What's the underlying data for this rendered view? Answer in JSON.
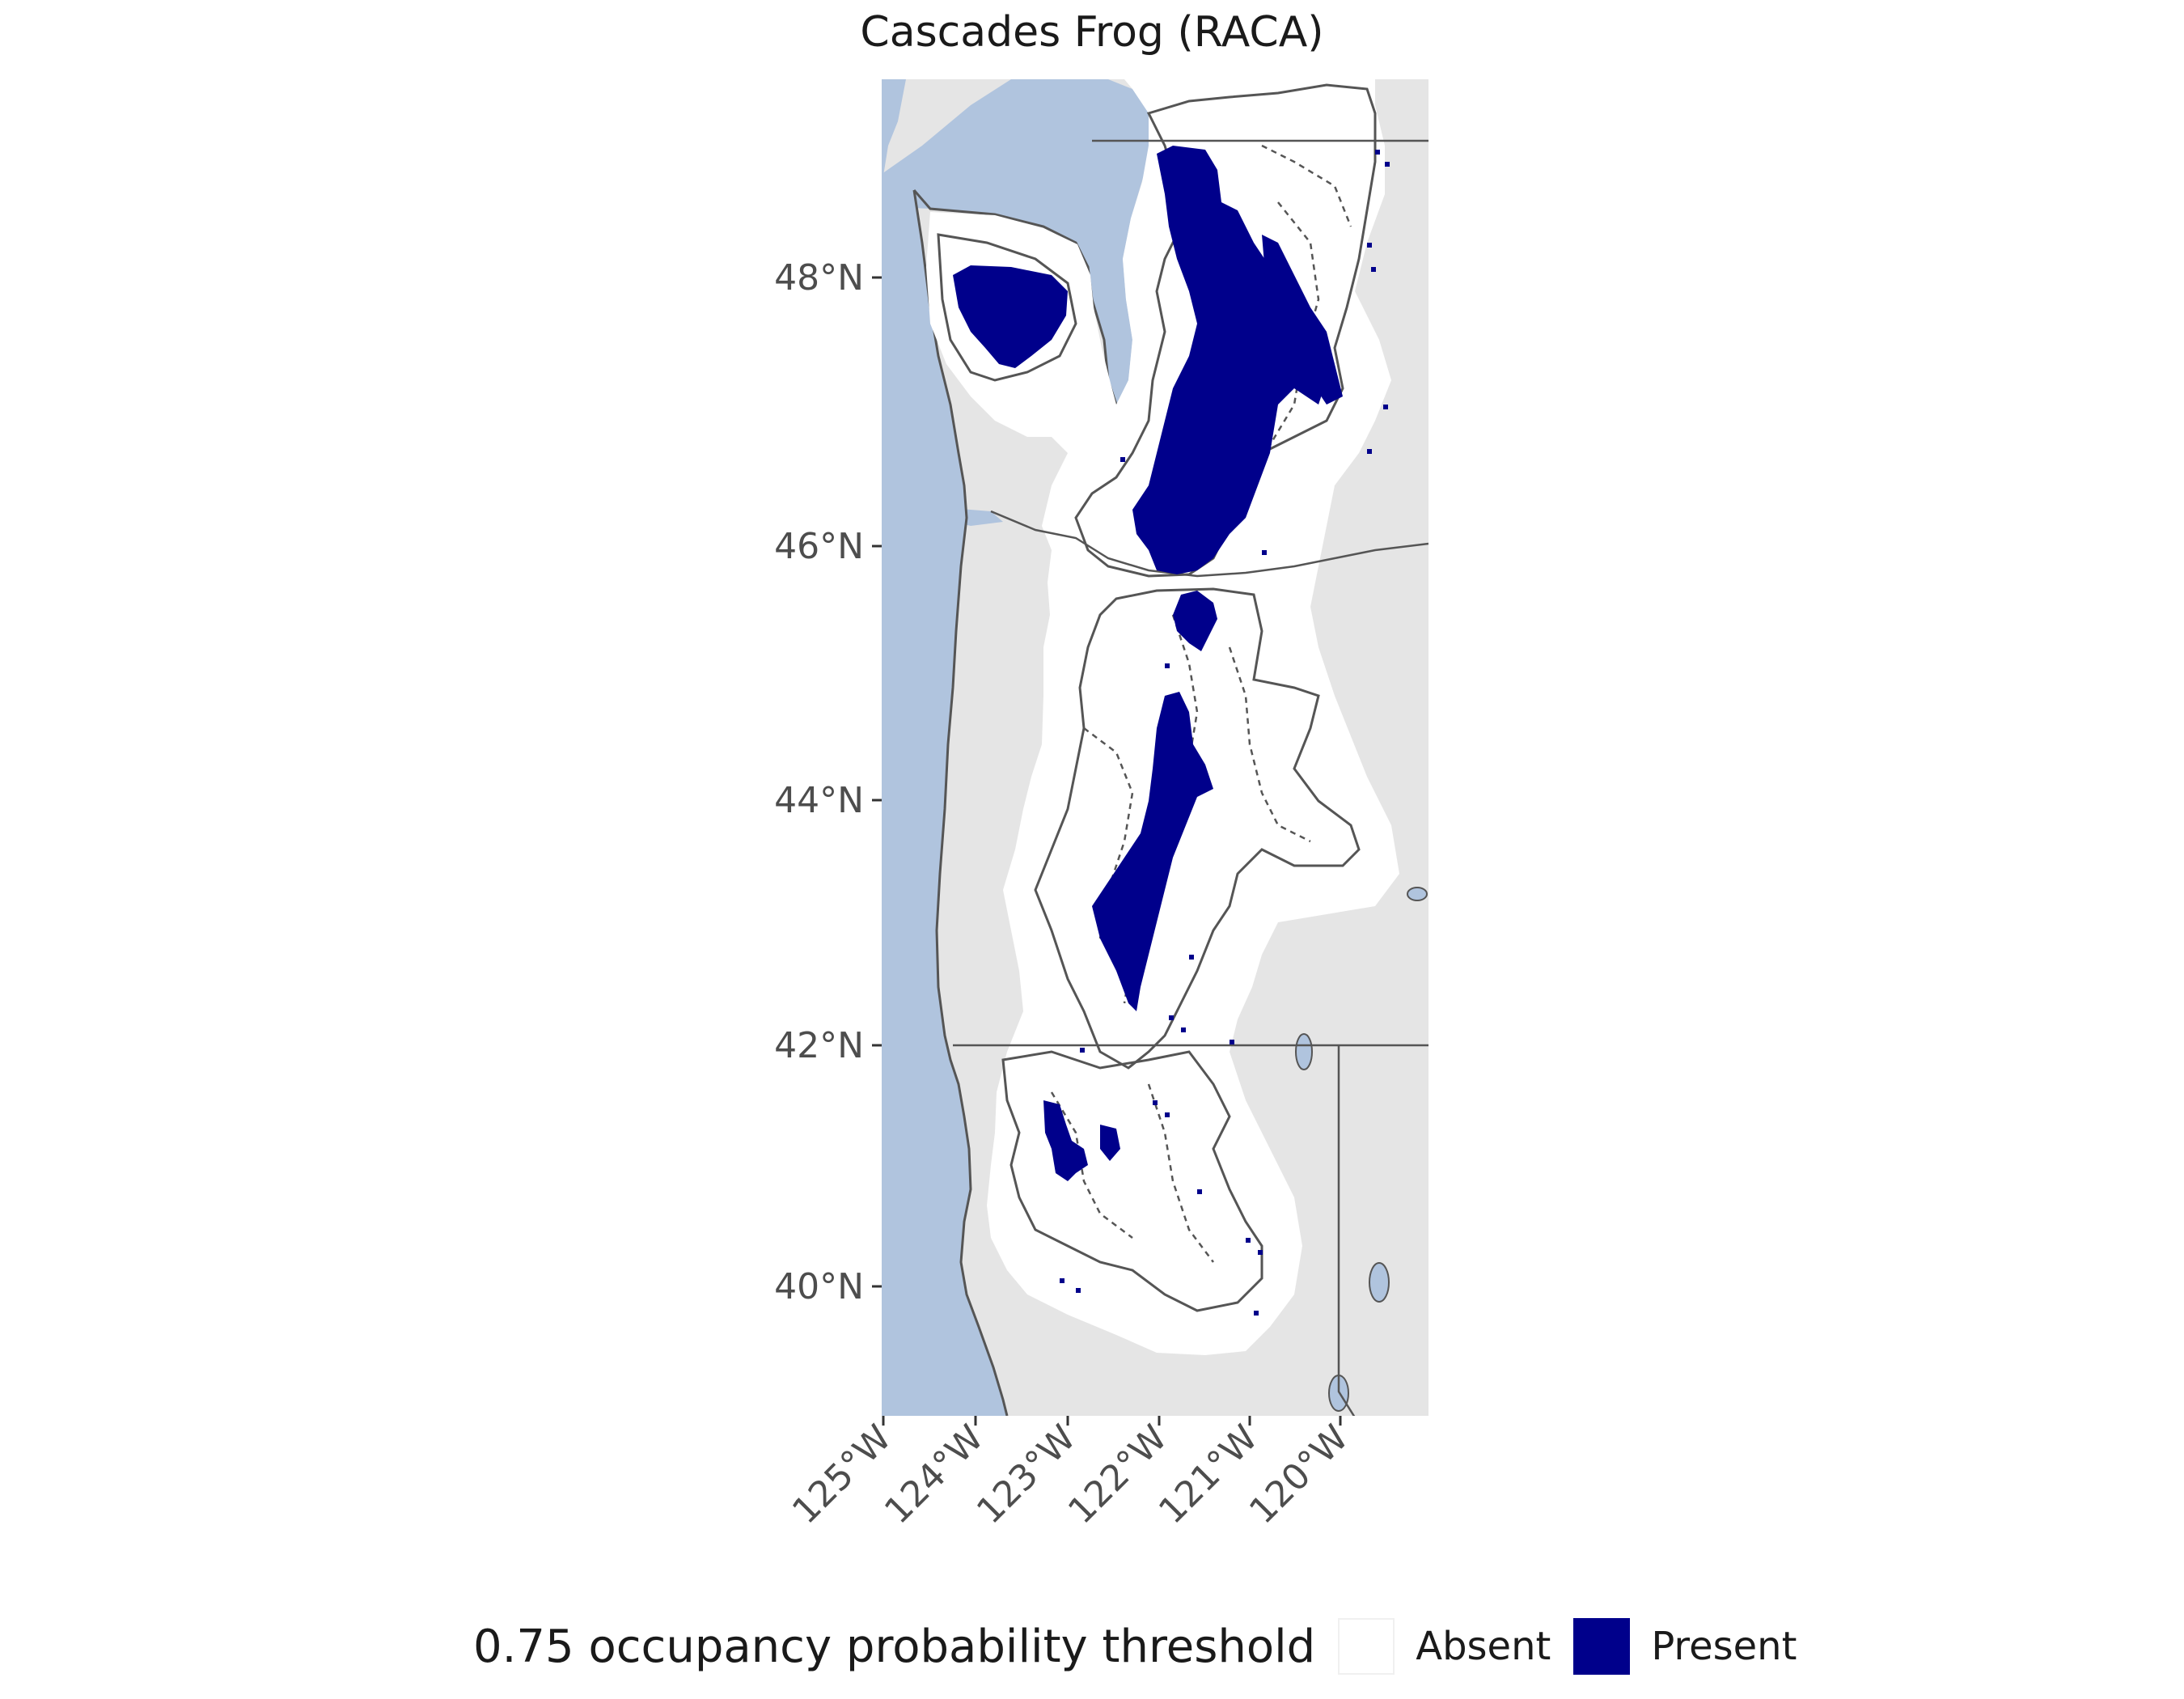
{
  "title": "Cascades Frog (RACA)",
  "axes": {
    "lat_labels": [
      "48°N",
      "46°N",
      "44°N",
      "42°N",
      "40°N"
    ],
    "lon_labels": [
      "125°W",
      "124°W",
      "123°W",
      "122°W",
      "121°W",
      "120°W"
    ],
    "lat_values": [
      48,
      46,
      44,
      42,
      40
    ],
    "lon_values": [
      -125,
      -124,
      -123,
      -122,
      -121,
      -120
    ],
    "lon_range": [
      -125,
      -119.4
    ],
    "lat_range": [
      38.9,
      49.6
    ]
  },
  "legend": {
    "title": "0.75 occupancy probability threshold",
    "items": [
      {
        "label": "Absent",
        "color": "#ffffff"
      },
      {
        "label": "Present",
        "color": "#00008b"
      }
    ]
  },
  "colors": {
    "panel_background": "#e5e5e5",
    "water": "#b0c4de",
    "study_area": "#ffffff",
    "present": "#00008b",
    "boundary": "#555555"
  }
}
